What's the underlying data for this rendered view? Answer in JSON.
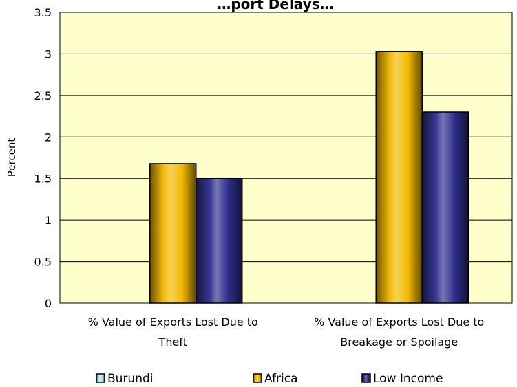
{
  "chart_data": {
    "type": "bar",
    "title": "…port Delays…",
    "ylabel": "Percent",
    "xlabel": "",
    "ylim": [
      0,
      3.5
    ],
    "yticks": [
      0,
      0.5,
      1,
      1.5,
      2,
      2.5,
      3,
      3.5
    ],
    "ytick_labels": [
      "0",
      "0.5",
      "1",
      "1.5",
      "2",
      "2.5",
      "3",
      "3.5"
    ],
    "grid": true,
    "legend_position": "bottom",
    "categories": [
      [
        "% Value of Exports Lost Due to",
        "Theft"
      ],
      [
        "% Value of Exports Lost Due to",
        "Breakage or Spoilage"
      ]
    ],
    "series": [
      {
        "name": "Burundi",
        "color": "#b3e5ec",
        "values": [
          0,
          0
        ]
      },
      {
        "name": "Africa",
        "color": "#f2b800",
        "values": [
          1.68,
          3.03
        ]
      },
      {
        "name": "Low Income",
        "color": "#2e2e8c",
        "values": [
          1.5,
          2.3
        ]
      }
    ],
    "plot_background": "#ffffcc"
  }
}
